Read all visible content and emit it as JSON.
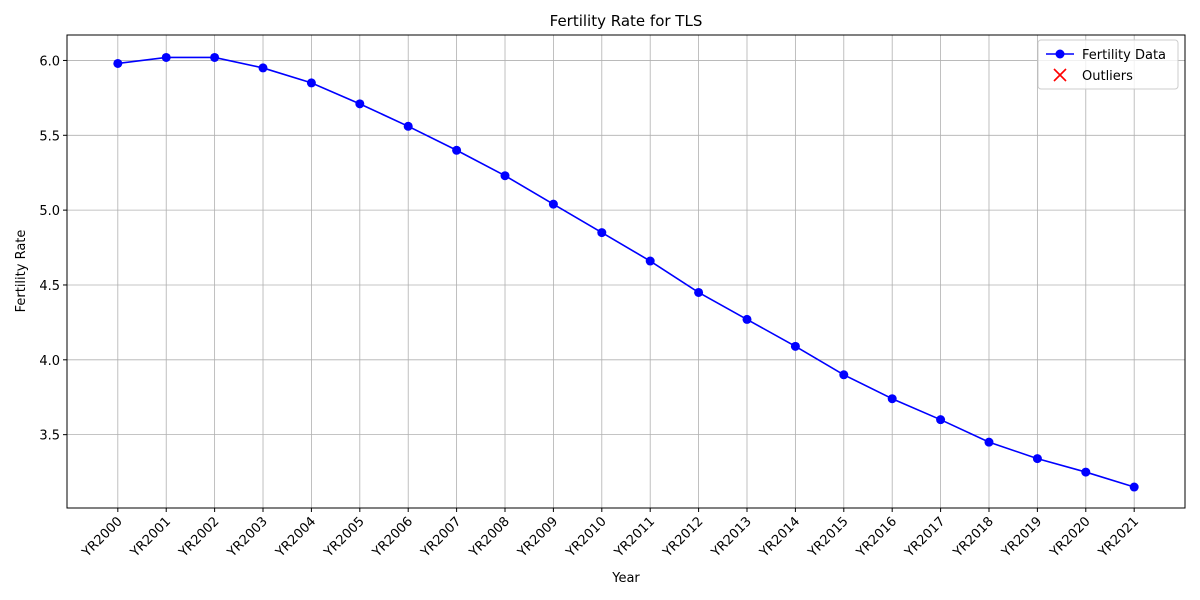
{
  "chart_data": {
    "type": "line",
    "title": "Fertility Rate for TLS",
    "x_label": "Year",
    "y_label": "Fertility Rate",
    "categories": [
      "YR2000",
      "YR2001",
      "YR2002",
      "YR2003",
      "YR2004",
      "YR2005",
      "YR2006",
      "YR2007",
      "YR2008",
      "YR2009",
      "YR2010",
      "YR2011",
      "YR2012",
      "YR2013",
      "YR2014",
      "YR2015",
      "YR2016",
      "YR2017",
      "YR2018",
      "YR2019",
      "YR2020",
      "YR2021"
    ],
    "series": [
      {
        "name": "Fertility Data",
        "color": "#0000ff",
        "values": [
          5.98,
          6.02,
          6.02,
          5.95,
          5.85,
          5.71,
          5.56,
          5.4,
          5.23,
          5.04,
          4.85,
          4.66,
          4.45,
          4.27,
          4.09,
          3.9,
          3.74,
          3.6,
          3.45,
          3.34,
          3.25,
          3.15
        ]
      },
      {
        "name": "Outliers",
        "color": "#ff0000",
        "values": [
          null,
          null,
          null,
          null,
          null,
          null,
          null,
          null,
          null,
          null,
          null,
          null,
          null,
          null,
          null,
          null,
          null,
          null,
          null,
          null,
          null,
          null
        ]
      }
    ],
    "ylim": [
      3.01,
      6.17
    ],
    "yticks": [
      3.5,
      {
        "value": 4,
        "label": "4.0"
      },
      4.5,
      {
        "value": 5,
        "label": "5.0"
      },
      5.5,
      {
        "value": 6,
        "label": "6.0"
      }
    ],
    "grid": true,
    "legend": "upper right"
  }
}
